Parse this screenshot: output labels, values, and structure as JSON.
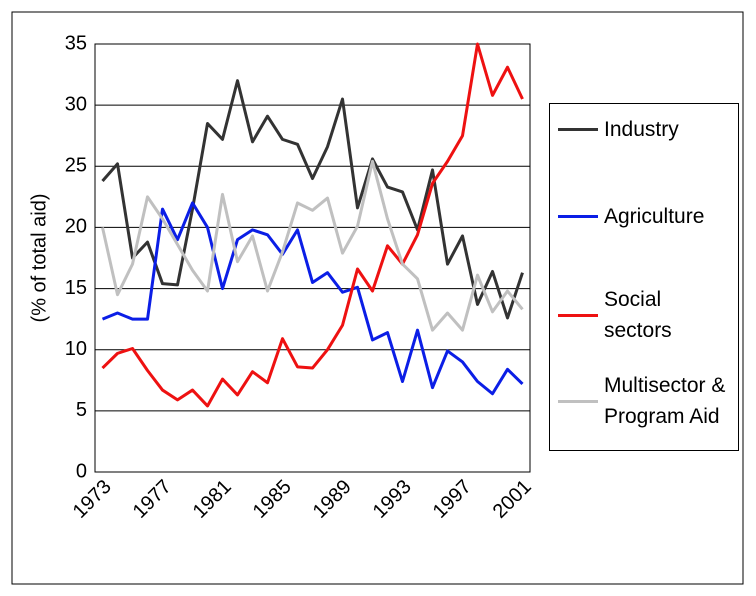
{
  "chart_data": {
    "type": "line",
    "y_label": "(% of total aid)",
    "categories": [
      "1973",
      null,
      null,
      null,
      "1977",
      null,
      null,
      null,
      "1981",
      null,
      null,
      null,
      "1985",
      null,
      null,
      null,
      "1989",
      null,
      null,
      null,
      "1993",
      null,
      null,
      null,
      "1997",
      null,
      null,
      null,
      "2001"
    ],
    "series": [
      {
        "name": "Industry",
        "color": "#333333",
        "values": [
          23.8,
          25.2,
          17.5,
          18.8,
          15.4,
          15.3,
          21.5,
          28.5,
          27.2,
          32,
          27,
          29.1,
          27.2,
          26.8,
          24,
          26.6,
          30.5,
          21.6,
          25.6,
          23.3,
          22.9,
          19.8,
          24.7,
          17,
          19.3,
          13.7,
          16.4,
          12.6,
          16.3
        ]
      },
      {
        "name": "Agriculture",
        "color": "#0b1ee6",
        "values": [
          12.5,
          13,
          12.5,
          12.5,
          21.5,
          19,
          22,
          20,
          15,
          19,
          19.8,
          19.4,
          17.8,
          19.8,
          15.5,
          16.3,
          14.7,
          15.1,
          10.8,
          11.4,
          7.4,
          11.6,
          6.9,
          9.9,
          9,
          7.4,
          6.4,
          8.4,
          7.2
        ]
      },
      {
        "name": "Social sectors",
        "color": "#ee1111",
        "values": [
          8.5,
          9.7,
          10.1,
          8.3,
          6.7,
          5.9,
          6.7,
          5.4,
          7.6,
          6.3,
          8.2,
          7.3,
          10.9,
          8.6,
          8.5,
          10,
          12,
          16.6,
          14.8,
          18.5,
          17,
          19.4,
          23.6,
          25.4,
          27.5,
          35,
          30.8,
          33.1,
          30.5
        ]
      },
      {
        "name": "Multisector & Program Aid",
        "color": "#c0c0c0",
        "values": [
          20,
          14.5,
          17,
          22.5,
          20.7,
          18.6,
          16.5,
          14.8,
          22.7,
          17.2,
          19.3,
          14.8,
          18,
          22,
          21.4,
          22.4,
          17.9,
          20.1,
          25.4,
          20.7,
          17,
          15.8,
          11.6,
          13,
          11.6,
          16.1,
          13.1,
          14.8,
          13.3
        ]
      }
    ],
    "ylim": [
      0,
      35
    ],
    "yticks": [
      0,
      5,
      10,
      15,
      20,
      25,
      30,
      35
    ],
    "grid": true
  }
}
